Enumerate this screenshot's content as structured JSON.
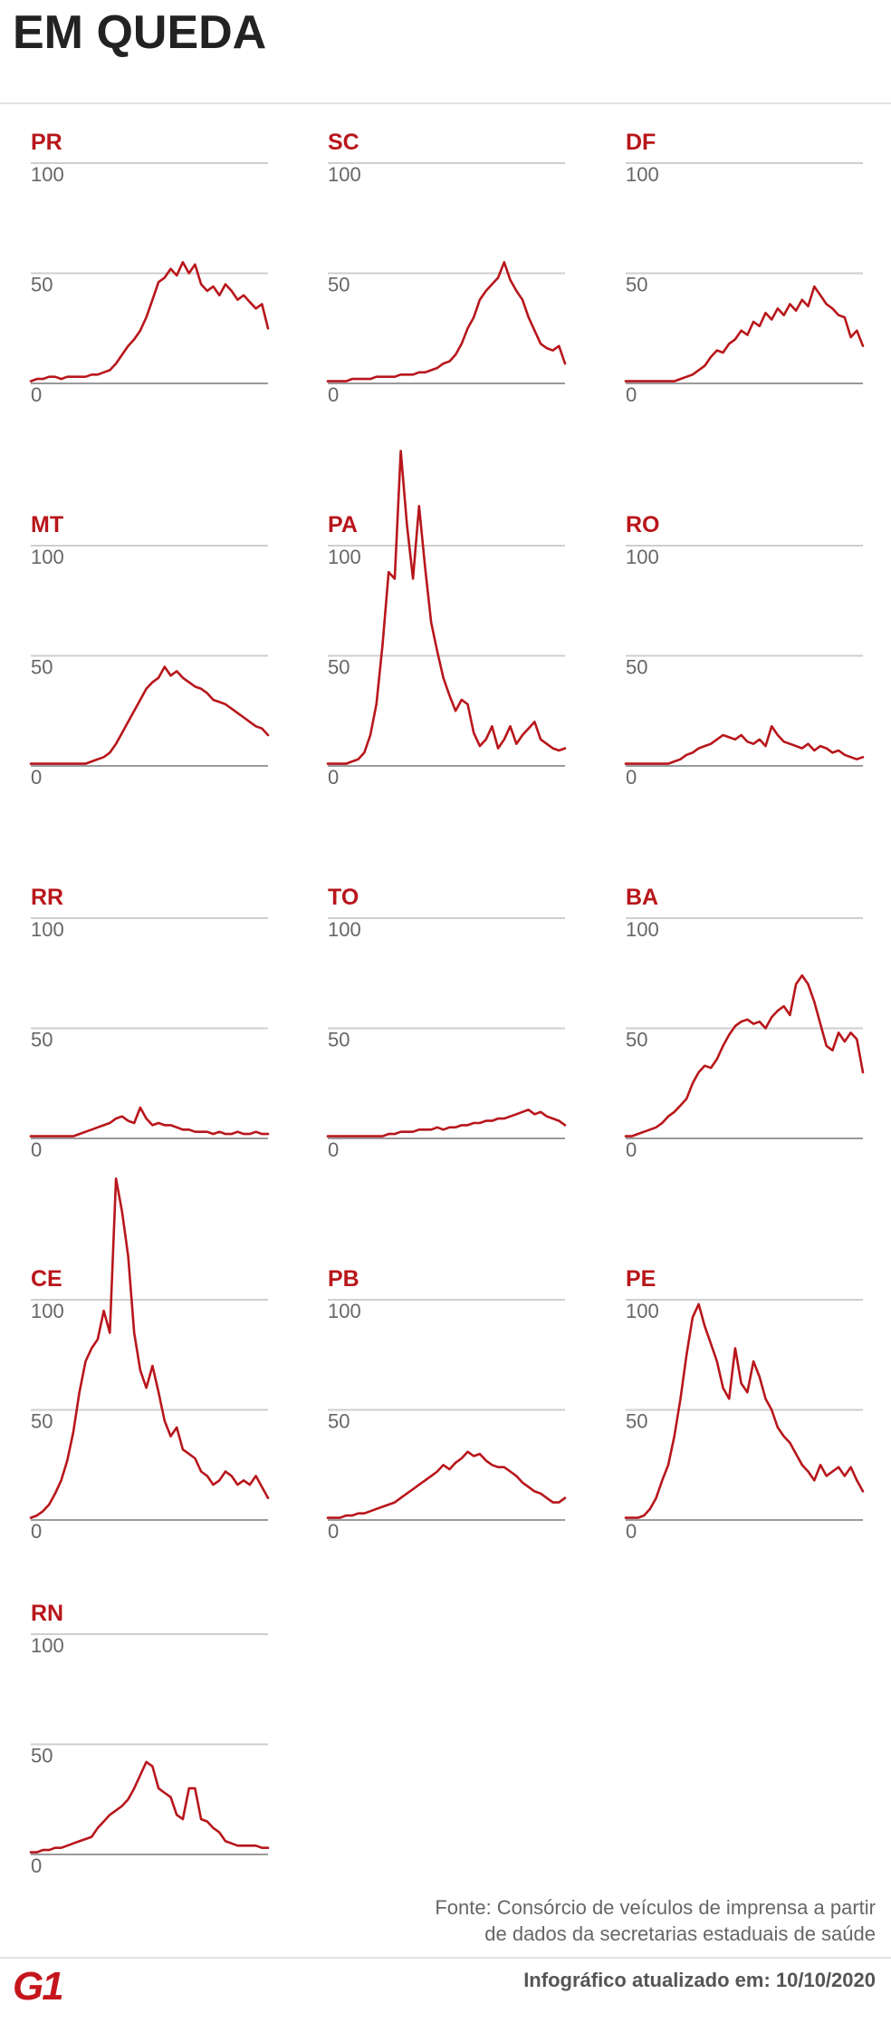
{
  "header": {
    "title": "EM QUEDA"
  },
  "colors": {
    "series": "#b8161b",
    "title": "#b8161b",
    "grid": "#cfcfcf",
    "axis": "#9a9a9a"
  },
  "chart_data": [
    {
      "type": "line",
      "title": "PR",
      "ylim": [
        0,
        100
      ],
      "yticks": [
        100,
        50,
        0
      ],
      "grid": true,
      "values": [
        1,
        2,
        2,
        3,
        3,
        2,
        3,
        3,
        3,
        3,
        4,
        4,
        5,
        6,
        9,
        13,
        17,
        20,
        24,
        30,
        38,
        46,
        48,
        52,
        49,
        55,
        50,
        54,
        45,
        42,
        44,
        40,
        45,
        42,
        38,
        40,
        37,
        34,
        36,
        25
      ]
    },
    {
      "type": "line",
      "title": "SC",
      "ylim": [
        0,
        100
      ],
      "yticks": [
        100,
        50,
        0
      ],
      "grid": true,
      "values": [
        1,
        1,
        1,
        1,
        2,
        2,
        2,
        2,
        3,
        3,
        3,
        3,
        4,
        4,
        4,
        5,
        5,
        6,
        7,
        9,
        10,
        13,
        18,
        25,
        30,
        38,
        42,
        45,
        48,
        55,
        47,
        42,
        38,
        30,
        24,
        18,
        16,
        15,
        17,
        9
      ]
    },
    {
      "type": "line",
      "title": "DF",
      "ylim": [
        0,
        100
      ],
      "yticks": [
        100,
        50,
        0
      ],
      "grid": true,
      "values": [
        1,
        1,
        1,
        1,
        1,
        1,
        1,
        1,
        1,
        2,
        3,
        4,
        6,
        8,
        12,
        15,
        14,
        18,
        20,
        24,
        22,
        28,
        26,
        32,
        29,
        34,
        31,
        36,
        33,
        38,
        35,
        44,
        40,
        36,
        34,
        31,
        30,
        21,
        24,
        17
      ]
    },
    {
      "type": "line",
      "title": "MT",
      "ylim": [
        0,
        100
      ],
      "yticks": [
        100,
        50,
        0
      ],
      "grid": true,
      "values": [
        1,
        1,
        1,
        1,
        1,
        1,
        1,
        1,
        1,
        1,
        2,
        3,
        4,
        6,
        10,
        15,
        20,
        25,
        30,
        35,
        38,
        40,
        45,
        41,
        43,
        40,
        38,
        36,
        35,
        33,
        30,
        29,
        28,
        26,
        24,
        22,
        20,
        18,
        17,
        14
      ]
    },
    {
      "type": "line",
      "title": "PA",
      "ylim": [
        0,
        100
      ],
      "yticks": [
        100,
        50,
        0
      ],
      "grid": true,
      "values": [
        1,
        1,
        1,
        1,
        2,
        3,
        6,
        14,
        28,
        55,
        88,
        85,
        143,
        110,
        85,
        118,
        90,
        65,
        52,
        40,
        32,
        25,
        30,
        28,
        15,
        9,
        12,
        18,
        8,
        12,
        18,
        10,
        14,
        17,
        20,
        12,
        10,
        8,
        7,
        8
      ]
    },
    {
      "type": "line",
      "title": "RO",
      "ylim": [
        0,
        100
      ],
      "yticks": [
        100,
        50,
        0
      ],
      "grid": true,
      "values": [
        1,
        1,
        1,
        1,
        1,
        1,
        1,
        1,
        2,
        3,
        5,
        6,
        8,
        9,
        10,
        12,
        14,
        13,
        12,
        14,
        11,
        10,
        12,
        9,
        18,
        14,
        11,
        10,
        9,
        8,
        10,
        7,
        9,
        8,
        6,
        7,
        5,
        4,
        3,
        4
      ]
    },
    {
      "type": "line",
      "title": "RR",
      "ylim": [
        0,
        100
      ],
      "yticks": [
        100,
        50,
        0
      ],
      "grid": true,
      "values": [
        1,
        1,
        1,
        1,
        1,
        1,
        1,
        1,
        2,
        3,
        4,
        5,
        6,
        7,
        9,
        10,
        8,
        7,
        14,
        9,
        6,
        7,
        6,
        6,
        5,
        4,
        4,
        3,
        3,
        3,
        2,
        3,
        2,
        2,
        3,
        2,
        2,
        3,
        2,
        2
      ]
    },
    {
      "type": "line",
      "title": "TO",
      "ylim": [
        0,
        100
      ],
      "yticks": [
        100,
        50,
        0
      ],
      "grid": true,
      "values": [
        1,
        1,
        1,
        1,
        1,
        1,
        1,
        1,
        1,
        1,
        2,
        2,
        3,
        3,
        3,
        4,
        4,
        4,
        5,
        4,
        5,
        5,
        6,
        6,
        7,
        7,
        8,
        8,
        9,
        9,
        10,
        11,
        12,
        13,
        11,
        12,
        10,
        9,
        8,
        6
      ]
    },
    {
      "type": "line",
      "title": "BA",
      "ylim": [
        0,
        100
      ],
      "yticks": [
        100,
        50,
        0
      ],
      "grid": true,
      "values": [
        1,
        1,
        2,
        3,
        4,
        5,
        7,
        10,
        12,
        15,
        18,
        25,
        30,
        33,
        32,
        36,
        42,
        47,
        51,
        53,
        54,
        52,
        53,
        50,
        55,
        58,
        60,
        56,
        70,
        74,
        70,
        62,
        52,
        42,
        40,
        48,
        44,
        48,
        45,
        30
      ]
    },
    {
      "type": "line",
      "title": "CE",
      "ylim": [
        0,
        100
      ],
      "yticks": [
        100,
        50,
        0
      ],
      "grid": true,
      "values": [
        1,
        2,
        4,
        7,
        12,
        18,
        27,
        40,
        58,
        72,
        78,
        82,
        95,
        85,
        155,
        140,
        120,
        85,
        68,
        60,
        70,
        58,
        45,
        38,
        42,
        32,
        30,
        28,
        22,
        20,
        16,
        18,
        22,
        20,
        16,
        18,
        16,
        20,
        15,
        10
      ]
    },
    {
      "type": "line",
      "title": "PB",
      "ylim": [
        0,
        100
      ],
      "yticks": [
        100,
        50,
        0
      ],
      "grid": true,
      "values": [
        1,
        1,
        1,
        2,
        2,
        3,
        3,
        4,
        5,
        6,
        7,
        8,
        10,
        12,
        14,
        16,
        18,
        20,
        22,
        25,
        23,
        26,
        28,
        31,
        29,
        30,
        27,
        25,
        24,
        24,
        22,
        20,
        17,
        15,
        13,
        12,
        10,
        8,
        8,
        10
      ]
    },
    {
      "type": "line",
      "title": "PE",
      "ylim": [
        0,
        100
      ],
      "yticks": [
        100,
        50,
        0
      ],
      "grid": true,
      "values": [
        1,
        1,
        1,
        2,
        5,
        10,
        18,
        25,
        38,
        55,
        75,
        92,
        98,
        88,
        80,
        72,
        60,
        55,
        78,
        62,
        58,
        72,
        65,
        55,
        50,
        42,
        38,
        35,
        30,
        25,
        22,
        18,
        25,
        20,
        22,
        24,
        20,
        24,
        18,
        13
      ]
    },
    {
      "type": "line",
      "title": "RN",
      "ylim": [
        0,
        100
      ],
      "yticks": [
        100,
        50,
        0
      ],
      "grid": true,
      "values": [
        1,
        1,
        2,
        2,
        3,
        3,
        4,
        5,
        6,
        7,
        8,
        12,
        15,
        18,
        20,
        22,
        25,
        30,
        36,
        42,
        40,
        30,
        28,
        26,
        18,
        16,
        30,
        30,
        16,
        15,
        12,
        10,
        6,
        5,
        4,
        4,
        4,
        4,
        3,
        3
      ]
    }
  ],
  "footer": {
    "source_line1": "Fonte: Consórcio de veículos de imprensa a partir",
    "source_line2": "de dados da secretarias estaduais de saúde",
    "updated": "Infográfico atualizado em: 10/10/2020",
    "logo_text": "G1"
  }
}
